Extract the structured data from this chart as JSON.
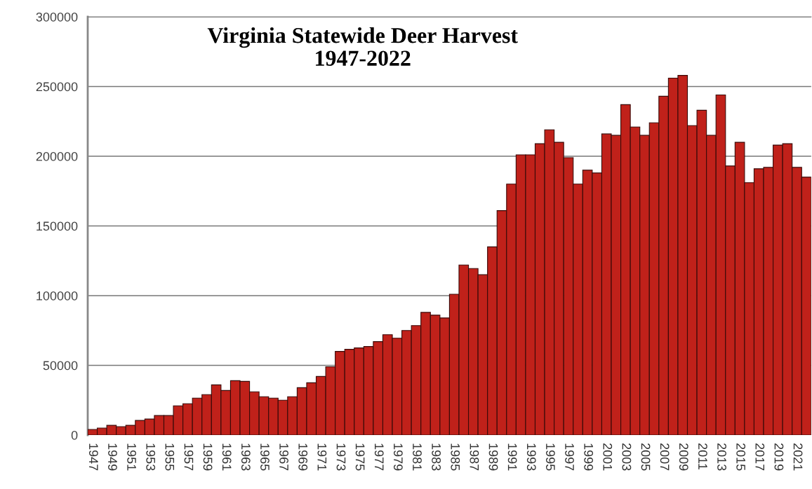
{
  "chart_data": {
    "type": "bar",
    "title": "Virginia Statewide Deer Harvest\n1947-2022",
    "categories": [
      "1947",
      null,
      "1949",
      null,
      "1951",
      null,
      "1953",
      null,
      "1955",
      null,
      "1957",
      null,
      "1959",
      null,
      "1961",
      null,
      "1963",
      null,
      "1965",
      null,
      "1967",
      null,
      "1969",
      null,
      "1971",
      null,
      "1973",
      null,
      "1975",
      null,
      "1977",
      null,
      "1979",
      null,
      "1981",
      null,
      "1983",
      null,
      "1985",
      null,
      "1987",
      null,
      "1989",
      null,
      "1991",
      null,
      "1993",
      null,
      "1995",
      null,
      "1997",
      null,
      "1999",
      null,
      "2001",
      null,
      "2003",
      null,
      "2005",
      null,
      "2007",
      null,
      "2009",
      null,
      "2011",
      null,
      "2013",
      null,
      "2015",
      null,
      "2017",
      null,
      "2019",
      null,
      "2021",
      null
    ],
    "values": [
      4000,
      5000,
      7000,
      6000,
      7000,
      10500,
      11500,
      14000,
      14000,
      21000,
      22500,
      26500,
      29000,
      36000,
      32000,
      39000,
      38500,
      31000,
      27500,
      26500,
      25000,
      27500,
      34000,
      37500,
      42000,
      49000,
      60000,
      61500,
      62500,
      63500,
      67000,
      72000,
      69500,
      75000,
      78500,
      88000,
      86000,
      84000,
      101000,
      122000,
      119500,
      115000,
      135000,
      161000,
      180000,
      201000,
      201000,
      209000,
      219000,
      210000,
      199000,
      180000,
      190000,
      188000,
      216000,
      215000,
      237000,
      221000,
      215000,
      224000,
      243000,
      256000,
      258000,
      222000,
      233000,
      215000,
      244000,
      193000,
      210000,
      181000,
      191000,
      192000,
      208000,
      209000,
      192000,
      185000
    ],
    "color": "#c0211a",
    "ylim": [
      0,
      300000
    ],
    "yticks": [
      0,
      50000,
      100000,
      150000,
      200000,
      250000,
      300000
    ],
    "grid": "y"
  }
}
